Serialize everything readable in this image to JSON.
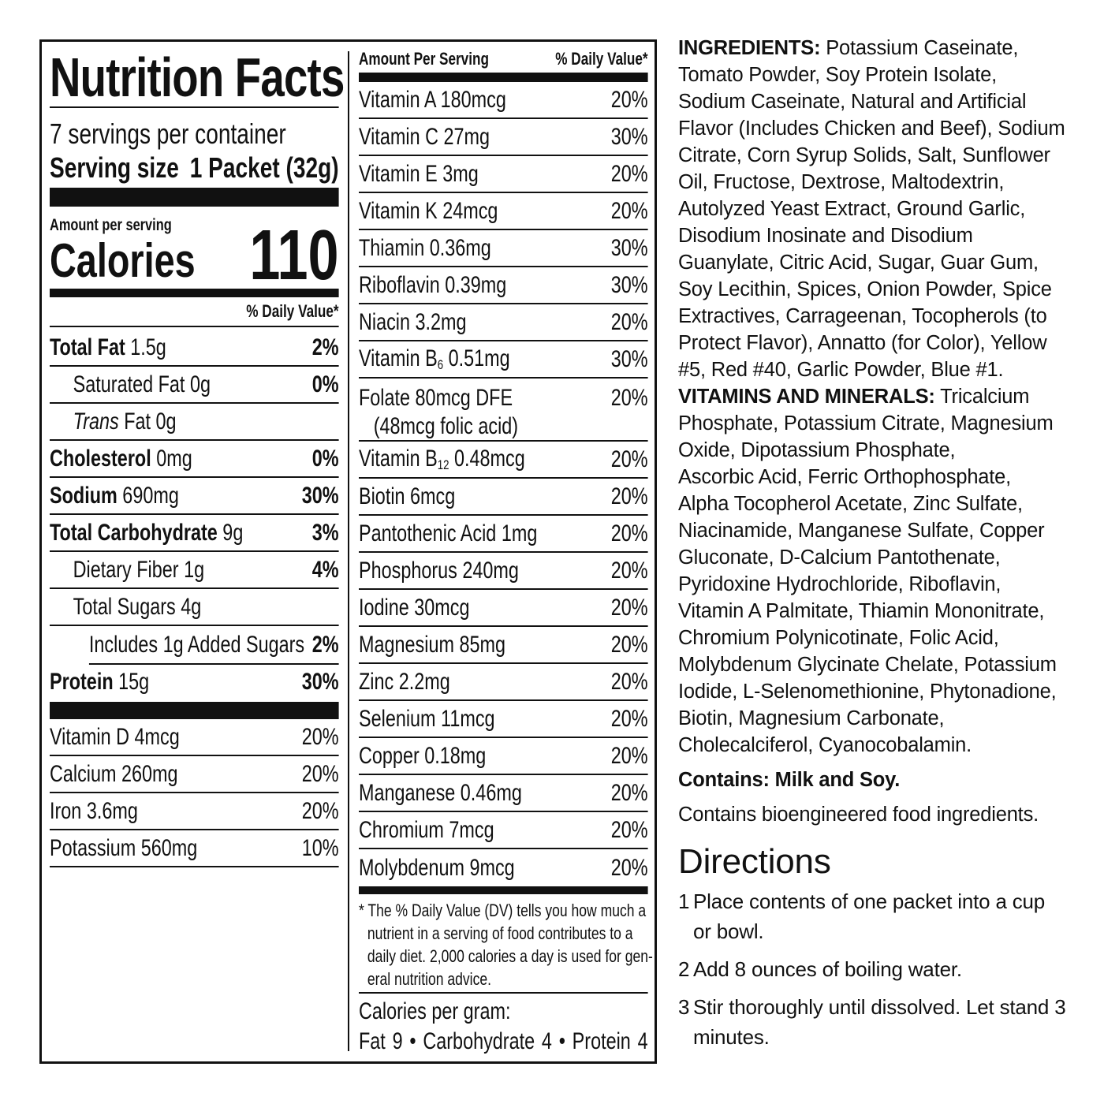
{
  "left": {
    "title": "Nutrition Facts",
    "servings": "7 servings per container",
    "serving_size_label": "Serving size",
    "serving_size_value": "1 Packet (32g)",
    "amount_per_serving": "Amount per serving",
    "calories_label": "Calories",
    "calories_value": "110",
    "dv_header": "% Daily Value*",
    "rows": [
      {
        "name": "Total Fat",
        "amount": "1.5g",
        "dv": "2%",
        "bold": true,
        "indent": 0
      },
      {
        "name": "Saturated Fat",
        "amount": "0g",
        "dv": "0%",
        "bold": false,
        "indent": 1
      },
      {
        "name": "Trans",
        "name_rest": "Fat 0g",
        "amount": "",
        "dv": "",
        "bold": false,
        "indent": 1,
        "italic": true
      },
      {
        "name": "Cholesterol",
        "amount": "0mg",
        "dv": "0%",
        "bold": true,
        "indent": 0
      },
      {
        "name": "Sodium",
        "amount": "690mg",
        "dv": "30%",
        "bold": true,
        "indent": 0
      },
      {
        "name": "Total Carbohydrate",
        "amount": "9g",
        "dv": "3%",
        "bold": true,
        "indent": 0
      },
      {
        "name": "Dietary Fiber",
        "amount": "1g",
        "dv": "4%",
        "bold": false,
        "indent": 1
      },
      {
        "name": "Total Sugars",
        "amount": "4g",
        "dv": "",
        "bold": false,
        "indent": 1
      },
      {
        "name": "Includes 1g Added Sugars",
        "amount": "",
        "dv": "2%",
        "bold": false,
        "indent": 2
      },
      {
        "name": "Protein",
        "amount": "15g",
        "dv": "30%",
        "bold": true,
        "indent": 0
      }
    ],
    "vitamins": [
      {
        "name": "Vitamin D 4mcg",
        "dv": "20%"
      },
      {
        "name": "Calcium 260mg",
        "dv": "20%"
      },
      {
        "name": "Iron 3.6mg",
        "dv": "20%"
      },
      {
        "name": "Potassium 560mg",
        "dv": "10%"
      }
    ]
  },
  "right": {
    "header_amount": "Amount Per Serving",
    "header_dv": "% Daily Value*",
    "rows": [
      {
        "name": "Vitamin A 180mcg",
        "dv": "20%"
      },
      {
        "name": "Vitamin C 27mg",
        "dv": "30%"
      },
      {
        "name": "Vitamin E 3mg",
        "dv": "20%"
      },
      {
        "name": "Vitamin K 24mcg",
        "dv": "20%"
      },
      {
        "name": "Thiamin 0.36mg",
        "dv": "30%"
      },
      {
        "name": "Riboflavin 0.39mg",
        "dv": "30%"
      },
      {
        "name": "Niacin 3.2mg",
        "dv": "20%"
      },
      {
        "name": "Vitamin B",
        "sub": "6",
        "rest": " 0.51mg",
        "dv": "30%"
      },
      {
        "name": "Folate 80mcg DFE",
        "line2": "(48mcg folic acid)",
        "dv": "20%"
      },
      {
        "name": "Vitamin B",
        "sub": "12",
        "rest": " 0.48mcg",
        "dv": "20%"
      },
      {
        "name": "Biotin 6mcg",
        "dv": "20%"
      },
      {
        "name": "Pantothenic Acid 1mg",
        "dv": "20%"
      },
      {
        "name": "Phosphorus 240mg",
        "dv": "20%"
      },
      {
        "name": "Iodine 30mcg",
        "dv": "20%"
      },
      {
        "name": "Magnesium 85mg",
        "dv": "20%"
      },
      {
        "name": "Zinc 2.2mg",
        "dv": "20%"
      },
      {
        "name": "Selenium 11mcg",
        "dv": "20%"
      },
      {
        "name": "Copper 0.18mg",
        "dv": "20%"
      },
      {
        "name": "Manganese 0.46mg",
        "dv": "20%"
      },
      {
        "name": "Chromium 7mcg",
        "dv": "20%"
      },
      {
        "name": "Molybdenum 9mcg",
        "dv": "20%"
      }
    ],
    "footnote": [
      "* The % Daily Value (DV) tells you how much a",
      "nutrient in a serving of food contributes to a",
      "daily diet. 2,000 calories a day is used for gen-",
      "eral nutrition advice."
    ],
    "cal_per_gram": "Calories per gram:",
    "cal_per_gram_values": "Fat 9 • Carbohydrate 4 • Protein 4"
  },
  "ingredients": {
    "label": "INGREDIENTS:",
    "lines": [
      " Potassium Caseinate,",
      "Tomato Powder, Soy Protein Isolate,",
      "Sodium Caseinate, Natural and Artificial",
      "Flavor (Includes Chicken and Beef), Sodium",
      "Citrate, Corn Syrup Solids, Salt, Sunflower",
      "Oil, Fructose, Dextrose, Maltodextrin,",
      "Autolyzed Yeast Extract, Ground Garlic,",
      "Disodium Inosinate and Disodium",
      "Guanylate, Citric Acid, Sugar, Guar Gum,",
      "Soy Lecithin, Spices, Onion Powder, Spice",
      "Extractives, Carrageenan, Tocopherols (to",
      "Protect Flavor), Annatto (for Color), Yellow",
      "#5, Red #40, Garlic Powder, Blue #1."
    ],
    "vitamins_label": "VITAMINS AND MINERALS:",
    "vitamins_lines": [
      " Tricalcium",
      "Phosphate, Potassium Citrate, Magnesium",
      "Oxide, Dipotassium Phosphate,",
      "Ascorbic Acid, Ferric Orthophosphate,",
      "Alpha Tocopherol Acetate, Zinc Sulfate,",
      "Niacinamide, Manganese Sulfate, Copper",
      "Gluconate, D-Calcium Pantothenate,",
      "Pyridoxine Hydrochloride, Riboflavin,",
      "Vitamin A Palmitate, Thiamin Mononitrate,",
      "Chromium Polynicotinate, Folic Acid,",
      "Molybdenum Glycinate Chelate, Potassium",
      "Iodide, L-Selenomethionine, Phytonadione,",
      "Biotin, Magnesium Carbonate,",
      "Cholecalciferol, Cyanocobalamin."
    ],
    "contains": "Contains: Milk and Soy.",
    "bioengineered": "Contains bioengineered food ingredients."
  },
  "directions": {
    "title": "Directions",
    "steps": [
      {
        "num": "1",
        "lines": [
          "Place contents of one packet into a cup",
          "or bowl."
        ]
      },
      {
        "num": "2",
        "lines": [
          "Add 8 ounces of boiling water."
        ]
      },
      {
        "num": "3",
        "lines": [
          "Stir thoroughly until dissolved. Let stand 3",
          "minutes."
        ]
      }
    ]
  }
}
